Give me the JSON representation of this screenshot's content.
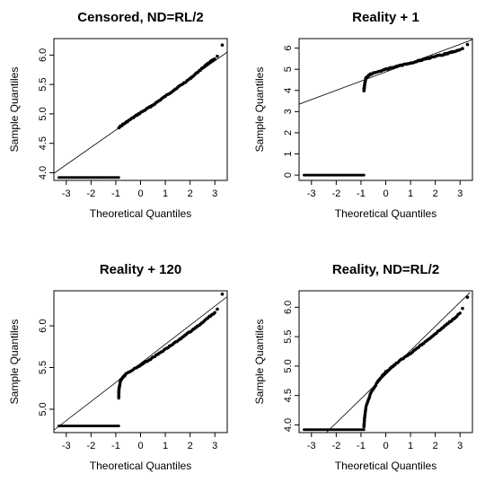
{
  "chart_data": [
    {
      "type": "scatter",
      "title": "Censored, ND=RL/2",
      "xlabel": "Theoretical Quantiles",
      "ylabel": "Sample Quantiles",
      "xlim": [
        -3.5,
        3.5
      ],
      "ylim": [
        3.87,
        6.28
      ],
      "xticks": [
        -3,
        -2,
        -1,
        0,
        1,
        2,
        3
      ],
      "yticks": [
        4.0,
        4.5,
        5.0,
        5.5,
        6.0
      ],
      "ytick_labels": [
        "4.0",
        "4.5",
        "5.0",
        "5.5",
        "6.0"
      ],
      "reference_line": [
        [
          -3.5,
          3.99
        ],
        [
          3.5,
          6.05
        ]
      ],
      "floor": {
        "value": 3.92,
        "x_from": -3.3,
        "x_to": -0.88
      },
      "curve": [
        [
          -0.88,
          4.77
        ],
        [
          -0.5,
          4.88
        ],
        [
          0,
          5.02
        ],
        [
          0.5,
          5.15
        ],
        [
          1,
          5.3
        ],
        [
          1.5,
          5.45
        ],
        [
          2,
          5.6
        ],
        [
          2.5,
          5.78
        ],
        [
          2.8,
          5.88
        ],
        [
          3.0,
          5.93
        ]
      ],
      "outliers": [
        [
          3.1,
          5.98
        ],
        [
          3.3,
          6.17
        ]
      ]
    },
    {
      "type": "scatter",
      "title": "Reality + 1",
      "xlabel": "Theoretical Quantiles",
      "ylabel": "Sample Quantiles",
      "xlim": [
        -3.5,
        3.5
      ],
      "ylim": [
        -0.25,
        6.45
      ],
      "xticks": [
        -3,
        -2,
        -1,
        0,
        1,
        2,
        3
      ],
      "yticks": [
        0,
        1,
        2,
        3,
        4,
        5,
        6
      ],
      "ytick_labels": [
        "0",
        "1",
        "2",
        "3",
        "4",
        "5",
        "6"
      ],
      "reference_line": [
        [
          -3.5,
          3.35
        ],
        [
          3.5,
          6.4
        ]
      ],
      "floor": {
        "value": 0,
        "x_from": -3.3,
        "x_to": -0.88
      },
      "curve": [
        [
          -0.88,
          4.0
        ],
        [
          -0.85,
          4.3
        ],
        [
          -0.8,
          4.6
        ],
        [
          -0.6,
          4.78
        ],
        [
          0,
          5.0
        ],
        [
          0.5,
          5.15
        ],
        [
          1,
          5.3
        ],
        [
          1.5,
          5.45
        ],
        [
          2,
          5.6
        ],
        [
          2.5,
          5.75
        ],
        [
          3.0,
          5.93
        ]
      ],
      "outliers": [
        [
          -0.88,
          4.1
        ],
        [
          3.1,
          5.98
        ],
        [
          3.3,
          6.17
        ]
      ]
    },
    {
      "type": "scatter",
      "title": "Reality + 120",
      "xlabel": "Theoretical Quantiles",
      "ylabel": "Sample Quantiles",
      "xlim": [
        -3.5,
        3.5
      ],
      "ylim": [
        4.72,
        6.42
      ],
      "xticks": [
        -3,
        -2,
        -1,
        0,
        1,
        2,
        3
      ],
      "yticks": [
        5.0,
        5.5,
        6.0
      ],
      "ytick_labels": [
        "5.0",
        "5.5",
        "6.0"
      ],
      "reference_line": [
        [
          -3.5,
          4.75
        ],
        [
          3.5,
          6.35
        ]
      ],
      "floor": {
        "value": 4.8,
        "x_from": -3.3,
        "x_to": -0.88
      },
      "curve": [
        [
          -0.88,
          5.14
        ],
        [
          -0.87,
          5.25
        ],
        [
          -0.8,
          5.35
        ],
        [
          -0.6,
          5.42
        ],
        [
          0,
          5.53
        ],
        [
          0.5,
          5.62
        ],
        [
          1,
          5.72
        ],
        [
          1.5,
          5.82
        ],
        [
          2,
          5.93
        ],
        [
          2.5,
          6.04
        ],
        [
          3.0,
          6.16
        ]
      ],
      "outliers": [
        [
          -0.88,
          5.2
        ],
        [
          3.1,
          6.2
        ],
        [
          3.3,
          6.38
        ]
      ]
    },
    {
      "type": "scatter",
      "title": "Reality, ND=RL/2",
      "xlabel": "Theoretical Quantiles",
      "ylabel": "Sample Quantiles",
      "xlim": [
        -3.5,
        3.5
      ],
      "ylim": [
        3.87,
        6.28
      ],
      "xticks": [
        -3,
        -2,
        -1,
        0,
        1,
        2,
        3
      ],
      "yticks": [
        4.0,
        4.5,
        5.0,
        5.5,
        6.0
      ],
      "ytick_labels": [
        "4.0",
        "4.5",
        "5.0",
        "5.5",
        "6.0"
      ],
      "reference_line": [
        [
          -2.4,
          3.87
        ],
        [
          3.4,
          6.25
        ]
      ],
      "floor": {
        "value": 3.92,
        "x_from": -3.3,
        "x_to": -0.88
      },
      "curve": [
        [
          -0.88,
          3.96
        ],
        [
          -0.86,
          4.1
        ],
        [
          -0.8,
          4.3
        ],
        [
          -0.6,
          4.55
        ],
        [
          -0.3,
          4.75
        ],
        [
          0,
          4.9
        ],
        [
          0.5,
          5.07
        ],
        [
          1,
          5.22
        ],
        [
          1.5,
          5.38
        ],
        [
          2,
          5.55
        ],
        [
          2.5,
          5.72
        ],
        [
          3.0,
          5.9
        ]
      ],
      "outliers": [
        [
          3.1,
          5.98
        ],
        [
          3.3,
          6.17
        ]
      ]
    }
  ]
}
